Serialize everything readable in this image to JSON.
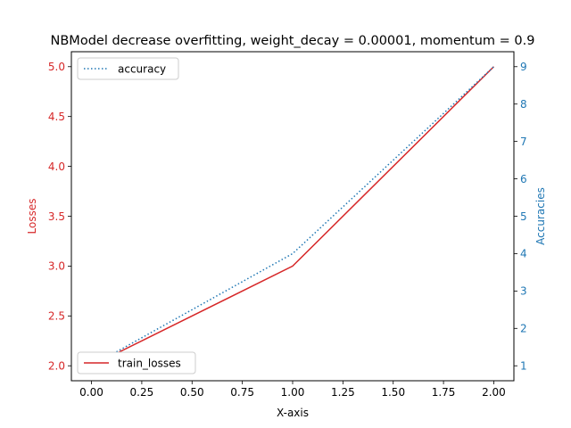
{
  "chart_data": {
    "type": "line",
    "title": "NBModel decrease overfitting, weight_decay = 0.00001, momentum = 0.9",
    "xlabel": "X-axis",
    "ylabel_left": "Losses",
    "ylabel_right": "Accuracies",
    "x": [
      0,
      1,
      2
    ],
    "xlim": [
      -0.1,
      2.1
    ],
    "ylim_left": [
      1.85,
      5.15
    ],
    "ylim_right": [
      0.6,
      9.4
    ],
    "xticks": [
      "0.00",
      "0.25",
      "0.50",
      "0.75",
      "1.00",
      "1.25",
      "1.50",
      "1.75",
      "2.00"
    ],
    "yticks_left": [
      "2.0",
      "2.5",
      "3.0",
      "3.5",
      "4.0",
      "4.5",
      "5.0"
    ],
    "yticks_right": [
      "1",
      "2",
      "3",
      "4",
      "5",
      "6",
      "7",
      "8",
      "9"
    ],
    "series": [
      {
        "name": "train_losses",
        "axis": "left",
        "values": [
          2.0,
          3.0,
          5.0
        ],
        "color": "#d62728",
        "style": "solid"
      },
      {
        "name": "accuracy",
        "axis": "right",
        "values": [
          1,
          4,
          9
        ],
        "color": "#1f77b4",
        "style": "dotted"
      }
    ],
    "legend": [
      {
        "series": "accuracy",
        "placement": "upper-left"
      },
      {
        "series": "train_losses",
        "placement": "lower-left"
      }
    ],
    "colors": {
      "left_axis": "#d62728",
      "right_axis": "#1f77b4",
      "frame": "#000000"
    },
    "grid": false
  }
}
